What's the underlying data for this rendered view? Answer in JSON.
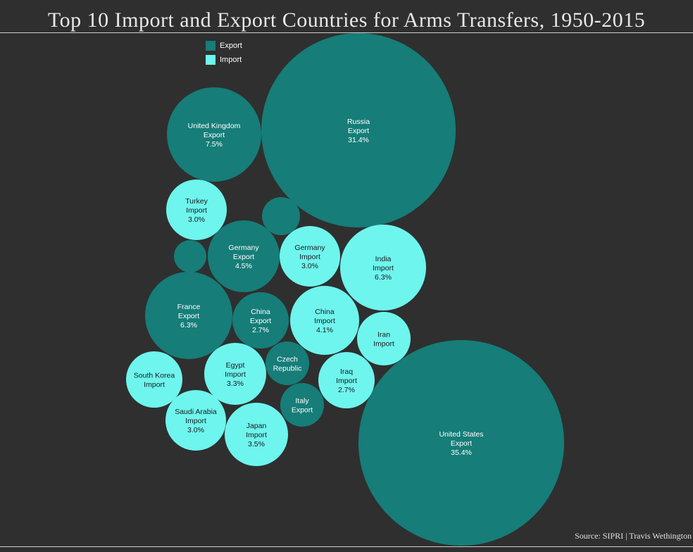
{
  "title": "Top 10 Import and Export Countries for Arms Transfers, 1950-2015",
  "source": "Source: SIPRI | Travis Wethington",
  "colors": {
    "export": "#167d78",
    "import": "#6ef5ee",
    "background": "#2f2f2f"
  },
  "legend": [
    {
      "label": "Export",
      "color": "#167d78"
    },
    {
      "label": "Import",
      "color": "#6ef5ee"
    }
  ],
  "chart_data": {
    "type": "bubble",
    "title": "Top 10 Import and Export Countries for Arms Transfers, 1950-2015",
    "legend_position": "top-left",
    "bubbles": [
      {
        "country": "United States",
        "kind": "Export",
        "value": 35.4,
        "label": "35.4%"
      },
      {
        "country": "Russia",
        "kind": "Export",
        "value": 31.4,
        "label": "31.4%"
      },
      {
        "country": "United Kingdom",
        "kind": "Export",
        "value": 7.5,
        "label": "7.5%"
      },
      {
        "country": "France",
        "kind": "Export",
        "value": 6.3,
        "label": "6.3%"
      },
      {
        "country": "India",
        "kind": "Import",
        "value": 6.3,
        "label": "6.3%"
      },
      {
        "country": "Germany",
        "kind": "Export",
        "value": 4.5,
        "label": "4.5%"
      },
      {
        "country": "China",
        "kind": "Import",
        "value": 4.1,
        "label": "4.1%"
      },
      {
        "country": "Japan",
        "kind": "Import",
        "value": 3.5,
        "label": "3.5%"
      },
      {
        "country": "Egypt",
        "kind": "Import",
        "value": 3.3,
        "label": "3.3%"
      },
      {
        "country": "Turkey",
        "kind": "Import",
        "value": 3.0,
        "label": "3.0%"
      },
      {
        "country": "Germany",
        "kind": "Import",
        "value": 3.0,
        "label": "3.0%"
      },
      {
        "country": "Saudi Arabia",
        "kind": "Import",
        "value": 3.0,
        "label": "3.0%"
      },
      {
        "country": "China",
        "kind": "Export",
        "value": 2.7,
        "label": "2.7%"
      },
      {
        "country": "Iraq",
        "kind": "Import",
        "value": 2.7,
        "label": "2.7%"
      },
      {
        "country": "South Korea",
        "kind": "Import",
        "value": null,
        "label": ""
      },
      {
        "country": "Iran",
        "kind": "Import",
        "value": null,
        "label": ""
      },
      {
        "country": "Czech Republic",
        "kind": "Export",
        "value": null,
        "label": ""
      },
      {
        "country": "Italy",
        "kind": "Export",
        "value": null,
        "label": ""
      },
      {
        "country": "",
        "kind": "Export",
        "value": null,
        "label": ""
      },
      {
        "country": "",
        "kind": "Export",
        "value": null,
        "label": ""
      }
    ]
  }
}
